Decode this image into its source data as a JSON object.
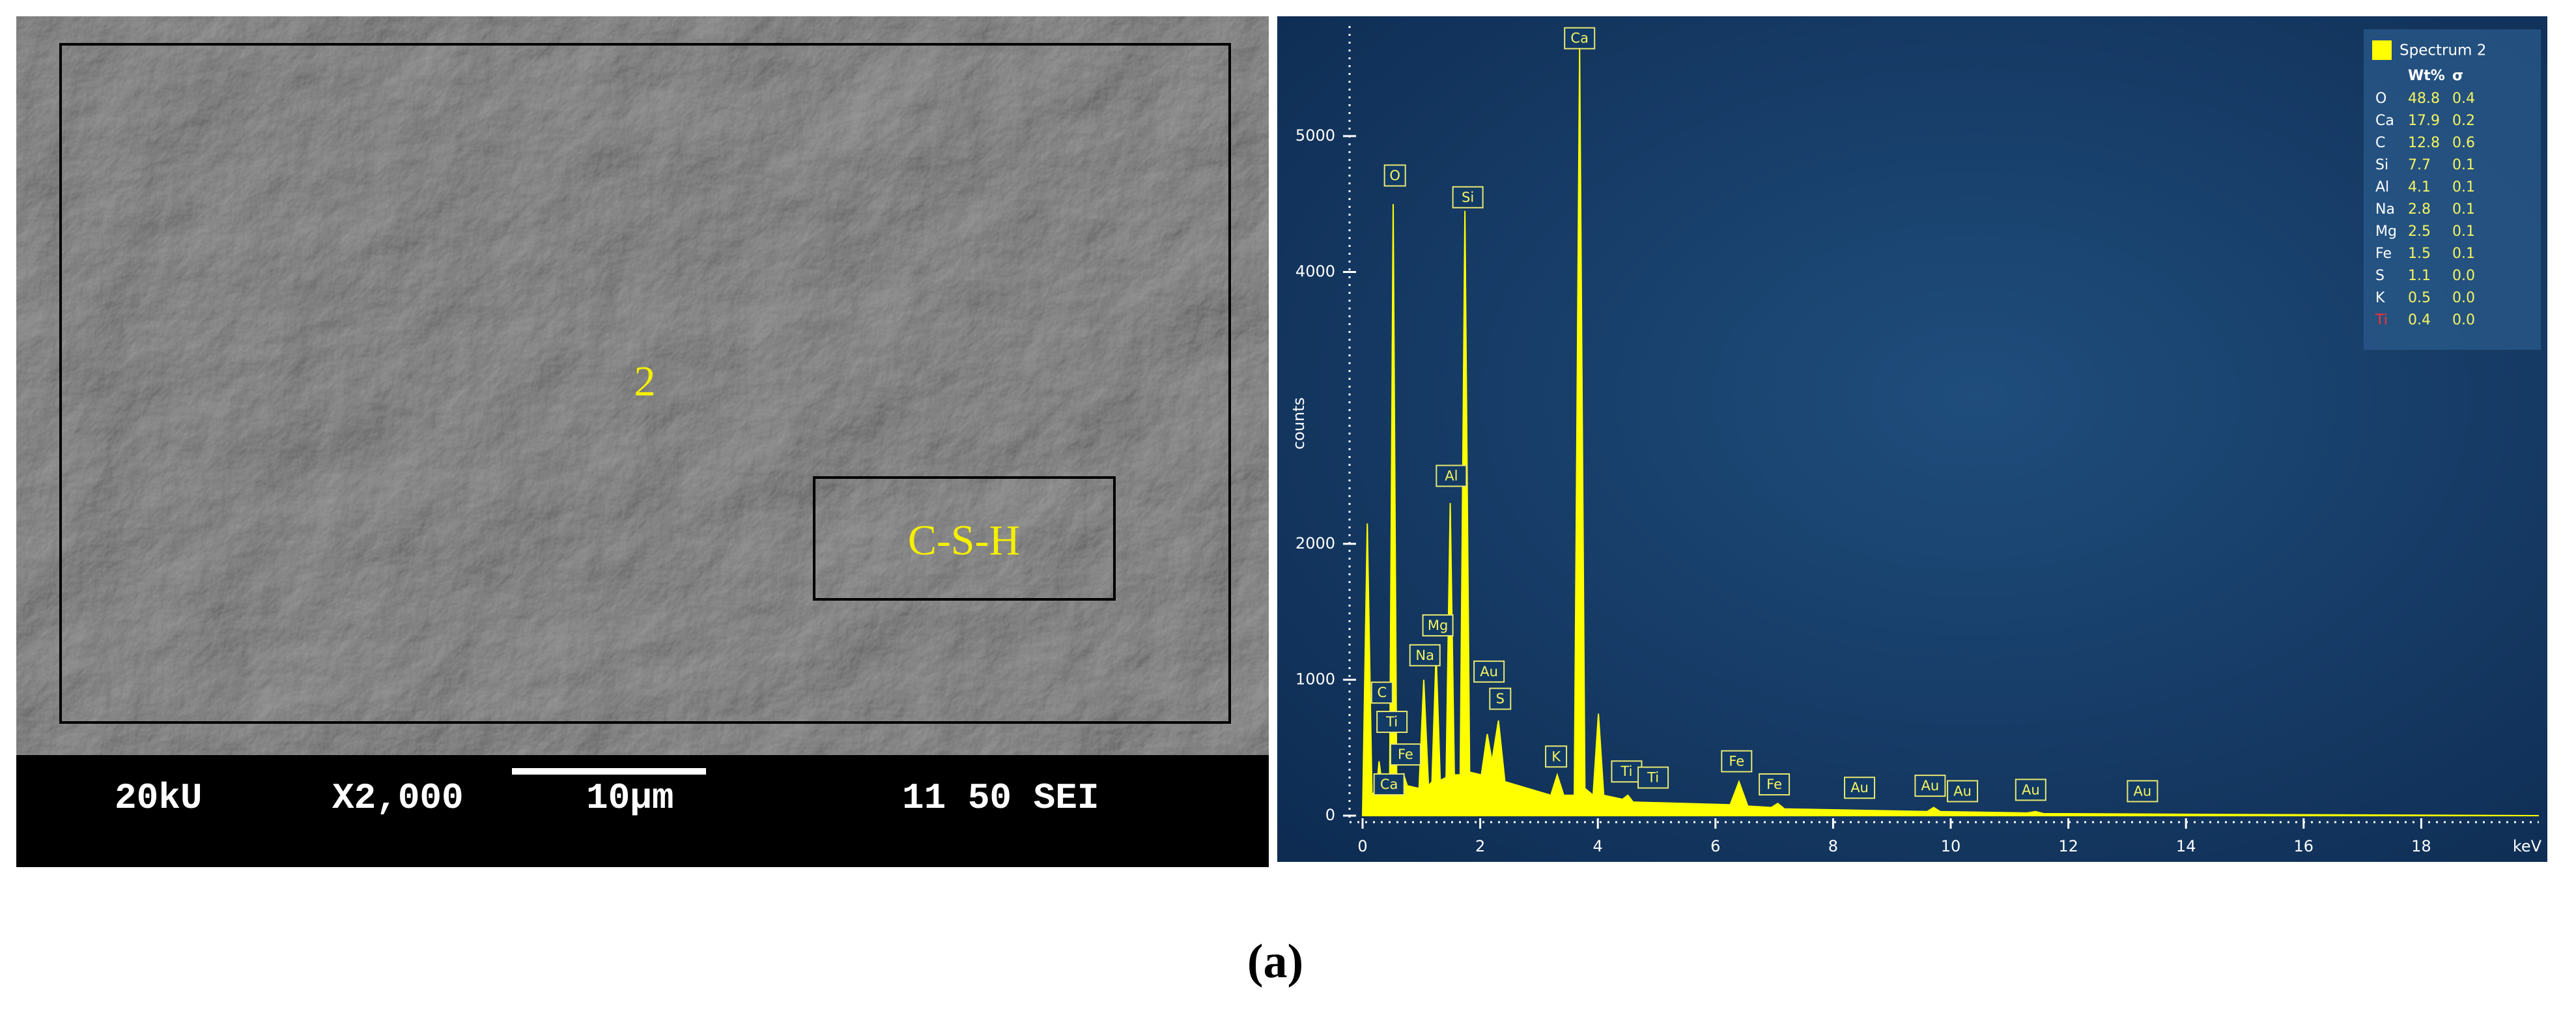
{
  "sem_image": {
    "label_point": "2",
    "label_region": "C-S-H",
    "info_bar": [
      "20kU",
      "X2,000",
      "10μm",
      "11 50 SEI"
    ]
  },
  "chart_data": {
    "type": "area",
    "x_label": "keV",
    "y_label": "counts",
    "x": [
      0,
      0.08,
      0.16,
      0.24,
      0.28,
      0.34,
      0.46,
      0.52,
      0.58,
      0.66,
      0.7,
      0.76,
      0.96,
      1.04,
      1.12,
      1.18,
      1.25,
      1.32,
      1.42,
      1.49,
      1.56,
      1.66,
      1.74,
      1.82,
      2.02,
      2.12,
      2.2,
      2.31,
      2.42,
      3.2,
      3.31,
      3.42,
      3.6,
      3.69,
      3.78,
      3.92,
      4.01,
      4.1,
      4.42,
      4.51,
      4.6,
      6.25,
      6.4,
      6.55,
      6.95,
      7.06,
      7.17,
      9.6,
      9.71,
      9.82,
      11.3,
      11.44,
      11.58,
      14,
      20
    ],
    "series": [
      {
        "name": "Spectrum 2",
        "color": "#ffff00",
        "values": [
          0,
          2150,
          150,
          200,
          400,
          200,
          220,
          4500,
          250,
          220,
          300,
          220,
          200,
          1000,
          220,
          250,
          1200,
          260,
          280,
          2300,
          300,
          300,
          4450,
          320,
          300,
          600,
          400,
          700,
          250,
          150,
          300,
          150,
          150,
          5650,
          200,
          150,
          750,
          150,
          120,
          150,
          100,
          80,
          250,
          70,
          60,
          90,
          50,
          30,
          60,
          30,
          20,
          30,
          15,
          10,
          0
        ]
      }
    ],
    "xlim": [
      0,
      20
    ],
    "xticks": [
      0,
      2,
      4,
      6,
      8,
      10,
      12,
      14,
      16,
      18
    ],
    "ylim": [
      0,
      5800
    ],
    "yticks": [
      0,
      1000,
      2000,
      4000,
      5000
    ],
    "grid": false,
    "legend_position": "top-right",
    "peak_labels": [
      {
        "label": "Ca",
        "x": 3.69,
        "y": 5720
      },
      {
        "label": "O",
        "x": 0.55,
        "y": 4710
      },
      {
        "label": "Si",
        "x": 1.79,
        "y": 4550
      },
      {
        "label": "Al",
        "x": 1.51,
        "y": 2500
      },
      {
        "label": "Mg",
        "x": 1.28,
        "y": 1400
      },
      {
        "label": "Na",
        "x": 1.06,
        "y": 1180
      },
      {
        "label": "Au",
        "x": 2.15,
        "y": 1060
      },
      {
        "label": "S",
        "x": 2.34,
        "y": 860
      },
      {
        "label": "C",
        "x": 0.33,
        "y": 905
      },
      {
        "label": "Ti",
        "x": 0.5,
        "y": 690
      },
      {
        "label": "Fe",
        "x": 0.73,
        "y": 450
      },
      {
        "label": "Ca",
        "x": 0.45,
        "y": 230
      },
      {
        "label": "K",
        "x": 3.29,
        "y": 435
      },
      {
        "label": "Ti",
        "x": 4.49,
        "y": 325
      },
      {
        "label": "Ti",
        "x": 4.94,
        "y": 280
      },
      {
        "label": "Fe",
        "x": 6.36,
        "y": 400
      },
      {
        "label": "Fe",
        "x": 7.0,
        "y": 230
      },
      {
        "label": "Au",
        "x": 8.45,
        "y": 205
      },
      {
        "label": "Au",
        "x": 9.65,
        "y": 220
      },
      {
        "label": "Au",
        "x": 10.2,
        "y": 180
      },
      {
        "label": "Au",
        "x": 11.36,
        "y": 190
      },
      {
        "label": "Au",
        "x": 13.26,
        "y": 180
      }
    ],
    "weight_table": {
      "header": [
        "Wt%",
        "σ"
      ],
      "rows": [
        [
          "O",
          "48.8",
          "0.4"
        ],
        [
          "Ca",
          "17.9",
          "0.2"
        ],
        [
          "C",
          "12.8",
          "0.6"
        ],
        [
          "Si",
          "7.7",
          "0.1"
        ],
        [
          "Al",
          "4.1",
          "0.1"
        ],
        [
          "Na",
          "2.8",
          "0.1"
        ],
        [
          "Mg",
          "2.5",
          "0.1"
        ],
        [
          "Fe",
          "1.5",
          "0.1"
        ],
        [
          "S",
          "1.1",
          "0.0"
        ],
        [
          "K",
          "0.5",
          "0.0"
        ],
        [
          "Ti",
          "0.4",
          "0.0"
        ]
      ]
    }
  },
  "caption": "(a)"
}
